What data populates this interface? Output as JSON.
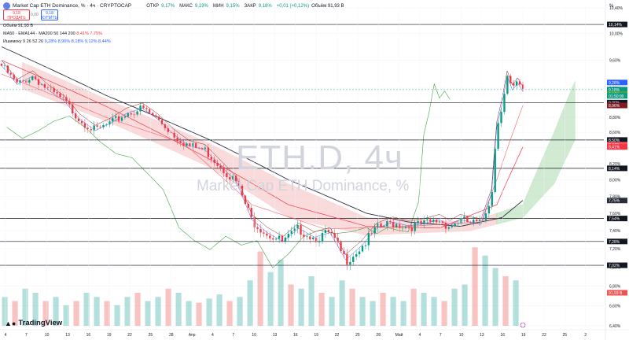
{
  "header": {
    "title": "Market Cap ETH Dominance, % · 4ч · CRYPTOCAP",
    "ohlc": [
      {
        "label": "ОТКР",
        "value": "9,17%"
      },
      {
        "label": "МАКС",
        "value": "9,19%"
      },
      {
        "label": "МИН",
        "value": "9,15%"
      },
      {
        "label": "ЗАКР",
        "value": "9,18%"
      },
      {
        "label": "",
        "value": "+0,01 (+0,12%)"
      },
      {
        "label": "",
        "value": "Объём 91,93 В"
      }
    ],
    "sell": {
      "price": "9,18",
      "label": "ПРОДАТЬ"
    },
    "buy": {
      "price": "9,18",
      "label": "КУПИТЬ"
    },
    "spread": "0,00"
  },
  "indicators": {
    "volume": "Объём 91,93 В",
    "ma_set": "MA50 · EMA144 · MA200 50 144 200",
    "ma_values": "8,41% 7,75%",
    "ichimoku": "Ишимоку 9 26 52 26",
    "ichimoku_values": "9,28% 8,96% 8,18% 9,12% 8,44%"
  },
  "watermark": {
    "symbol": "ETH.D, 4ч",
    "name": "Market Cap ETH Dominance, %"
  },
  "branding": {
    "logo": "TradingView"
  },
  "percent_symbol": "%",
  "colors": {
    "up": "#089981",
    "down": "#f23645",
    "ma200": "#2a2e39",
    "ema144": "#f23645",
    "ma50": "#f7525f",
    "tenkan": "#2962ff",
    "kijun": "#801922",
    "lagging": "#43a047",
    "cloud_up": "#a5d6a7",
    "cloud_down": "#ef9a9a"
  },
  "chart_data": {
    "type": "candlestick",
    "y_axis": {
      "scale": "log",
      "range": [
        6.4,
        10.4
      ],
      "ticks": [
        "10,40%",
        "10,00%",
        "9,60%",
        "9,20%",
        "8,80%",
        "8,60%",
        "8,40%",
        "8,20%",
        "8,00%",
        "7,80%",
        "7,60%",
        "7,40%",
        "7,20%",
        "7,00%",
        "6,80%",
        "6,60%",
        "6,40%"
      ]
    },
    "x_axis": {
      "ticks": [
        "4",
        "7",
        "10",
        "13",
        "16",
        "19",
        "22",
        "25",
        "28",
        "Апр",
        "4",
        "7",
        "10",
        "13",
        "16",
        "19",
        "22",
        "25",
        "28",
        "Май",
        "4",
        "7",
        "10",
        "13",
        "16",
        "19",
        "22",
        "25",
        "2"
      ]
    },
    "horizontal_levels": [
      {
        "value": 10.14,
        "label": "10,14%"
      },
      {
        "value": 9.0,
        "label": "9,00%"
      },
      {
        "value": 8.5,
        "label": "8,50%"
      },
      {
        "value": 8.14,
        "label": "8,14%"
      },
      {
        "value": 7.54,
        "label": "7,54%"
      },
      {
        "value": 7.28,
        "label": "7,28%"
      },
      {
        "value": 7.02,
        "label": "7,02%"
      }
    ],
    "price_labels": [
      {
        "value": 9.28,
        "text": "9,28%",
        "color": "#2962ff"
      },
      {
        "value": 9.18,
        "text": "9,18%",
        "color": "#089981"
      },
      {
        "value": 9.12,
        "text": "9,12%",
        "color": "#43a047"
      },
      {
        "value": 8.96,
        "text": "8,96%",
        "color": "#801922"
      },
      {
        "value": 8.44,
        "text": "8,44%",
        "color": "#f7525f"
      },
      {
        "value": 8.41,
        "text": "8,41%",
        "color": "#f23645"
      },
      {
        "value": 7.75,
        "text": "7,75%",
        "color": "#2a2e39"
      }
    ],
    "countdown": "01:50:00",
    "volume_label": "91,93 В",
    "price_path": [
      [
        0,
        9.55
      ],
      [
        3,
        9.28
      ],
      [
        6,
        9.4
      ],
      [
        9,
        9.2
      ],
      [
        12,
        9.05
      ],
      [
        15,
        8.8
      ],
      [
        18,
        8.65
      ],
      [
        21,
        8.75
      ],
      [
        24,
        8.88
      ],
      [
        27,
        8.95
      ],
      [
        30,
        8.8
      ],
      [
        33,
        8.6
      ],
      [
        36,
        8.45
      ],
      [
        39,
        8.4
      ],
      [
        42,
        8.2
      ],
      [
        45,
        8.0
      ],
      [
        48,
        7.55
      ],
      [
        51,
        7.4
      ],
      [
        54,
        7.3
      ],
      [
        57,
        7.45
      ],
      [
        60,
        7.35
      ],
      [
        63,
        7.4
      ],
      [
        66,
        7.1
      ],
      [
        69,
        7.25
      ],
      [
        72,
        7.45
      ],
      [
        75,
        7.52
      ],
      [
        78,
        7.48
      ],
      [
        81,
        7.5
      ],
      [
        84,
        7.55
      ],
      [
        86,
        7.48
      ],
      [
        88,
        7.55
      ],
      [
        90,
        7.52
      ],
      [
        92,
        7.5
      ],
      [
        94,
        7.85
      ],
      [
        95,
        8.7
      ],
      [
        96,
        9.0
      ],
      [
        97,
        9.4
      ],
      [
        98,
        9.2
      ],
      [
        99,
        9.3
      ],
      [
        100,
        9.18
      ]
    ],
    "ma200_path": [
      [
        0,
        9.8
      ],
      [
        20,
        9.1
      ],
      [
        40,
        8.5
      ],
      [
        55,
        8.0
      ],
      [
        70,
        7.6
      ],
      [
        78,
        7.5
      ],
      [
        88,
        7.45
      ],
      [
        96,
        7.55
      ],
      [
        100,
        7.75
      ]
    ],
    "ema144_path": [
      [
        0,
        9.6
      ],
      [
        20,
        8.95
      ],
      [
        40,
        8.25
      ],
      [
        55,
        7.7
      ],
      [
        70,
        7.45
      ],
      [
        84,
        7.43
      ],
      [
        95,
        7.7
      ],
      [
        100,
        8.41
      ]
    ],
    "ma50_path": [
      [
        0,
        9.4
      ],
      [
        20,
        8.8
      ],
      [
        35,
        8.45
      ],
      [
        48,
        7.7
      ],
      [
        62,
        7.42
      ],
      [
        78,
        7.45
      ],
      [
        92,
        7.5
      ],
      [
        95,
        8.0
      ],
      [
        100,
        8.96
      ]
    ],
    "volume_profile": [
      0.35,
      0.3,
      0.45,
      0.4,
      0.3,
      0.35,
      0.25,
      0.3,
      0.4,
      0.35,
      0.3,
      0.25,
      0.35,
      0.4,
      0.3,
      0.35,
      0.45,
      0.4,
      0.3,
      0.28,
      0.33,
      0.38,
      0.3,
      0.35,
      0.55,
      0.9,
      0.65,
      0.8,
      0.5,
      0.45,
      0.6,
      0.4,
      0.35,
      0.55,
      0.45,
      0.35,
      0.3,
      0.4,
      0.35,
      0.3,
      0.45,
      0.4,
      0.35,
      0.3,
      0.45,
      0.5,
      0.95,
      0.85,
      0.7,
      0.6,
      0.55
    ]
  }
}
